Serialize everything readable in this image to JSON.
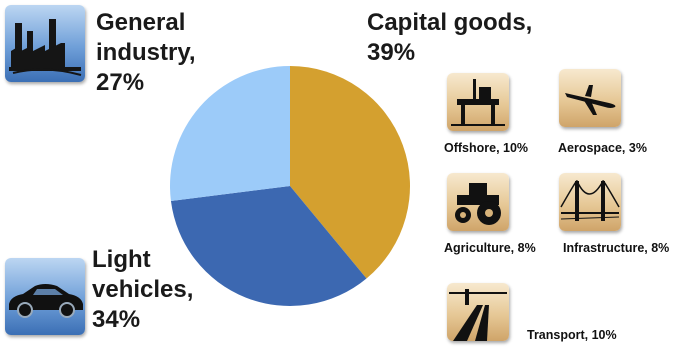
{
  "chart_data": {
    "type": "pie",
    "title": "",
    "slices": [
      {
        "label": "Capital goods",
        "percent_text": "39%",
        "value": 39,
        "color": "#d4a02f"
      },
      {
        "label": "Light vehicles",
        "percent_text": "34%",
        "value": 34,
        "color": "#3c68b1"
      },
      {
        "label": "General industry",
        "percent_text": "27%",
        "value": 27,
        "color": "#9ccbf9"
      }
    ],
    "start_angle_deg": 0,
    "direction": "clockwise",
    "labels": {
      "capital_goods": "Capital goods,\n39%",
      "general_industry": "General\nindustry,\n27%",
      "light_vehicles": "Light\nvehicles,\n34%"
    },
    "capital_goods_breakdown": [
      {
        "label": "Offshore, 10%",
        "value": 10,
        "icon": "offshore-rig-icon"
      },
      {
        "label": "Aerospace, 3%",
        "value": 3,
        "icon": "airplane-icon"
      },
      {
        "label": "Agriculture, 8%",
        "value": 8,
        "icon": "tractor-icon"
      },
      {
        "label": "Infrastructure, 8%",
        "value": 8,
        "icon": "bridge-icon"
      },
      {
        "label": "Transport, 10%",
        "value": 10,
        "icon": "railway-icon"
      }
    ],
    "segment_icons": {
      "general_industry": "factory-icon",
      "light_vehicles": "car-icon"
    }
  }
}
